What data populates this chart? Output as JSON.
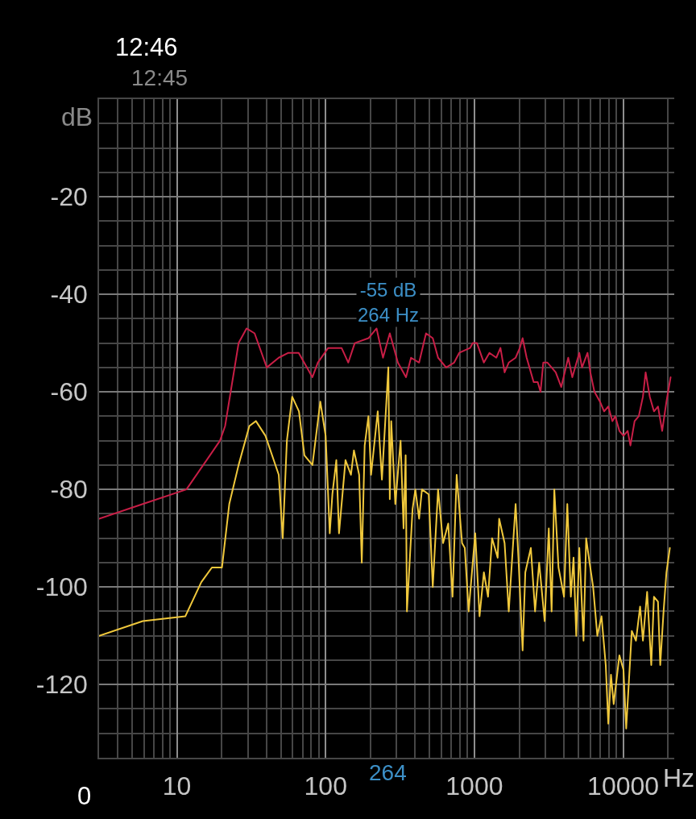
{
  "chart_data": {
    "type": "line",
    "xlabel": "Hz",
    "ylabel": "dB",
    "log": "x",
    "grid": true,
    "xlim": [
      3,
      22050
    ],
    "ylim": [
      -135,
      0
    ],
    "xticks": [
      {
        "value": 3,
        "label": null
      },
      {
        "value": 4,
        "label": null
      },
      {
        "value": 5,
        "label": null
      },
      {
        "value": 6,
        "label": null
      },
      {
        "value": 7,
        "label": null
      },
      {
        "value": 8,
        "label": null
      },
      {
        "value": 9,
        "label": null
      },
      10,
      {
        "value": 20,
        "label": null
      },
      {
        "value": 30,
        "label": null
      },
      {
        "value": 40,
        "label": null
      },
      {
        "value": 50,
        "label": null
      },
      {
        "value": 60,
        "label": null
      },
      {
        "value": 70,
        "label": null
      },
      {
        "value": 80,
        "label": null
      },
      {
        "value": 90,
        "label": null
      },
      100,
      {
        "value": 200,
        "label": null
      },
      {
        "value": 300,
        "label": null
      },
      {
        "value": 400,
        "label": null
      },
      {
        "value": 500,
        "label": null
      },
      {
        "value": 600,
        "label": null
      },
      {
        "value": 700,
        "label": null
      },
      {
        "value": 800,
        "label": null
      },
      {
        "value": 900,
        "label": null
      },
      1000,
      {
        "value": 2000,
        "label": null
      },
      {
        "value": 3000,
        "label": null
      },
      {
        "value": 4000,
        "label": null
      },
      {
        "value": 5000,
        "label": null
      },
      {
        "value": 6000,
        "label": null
      },
      {
        "value": 7000,
        "label": null
      },
      {
        "value": 8000,
        "label": null
      },
      {
        "value": 9000,
        "label": null
      },
      10000,
      {
        "value": 20000,
        "label": null
      }
    ],
    "yticks": [
      {
        "value": -5,
        "label": null
      },
      {
        "value": -10,
        "label": null
      },
      {
        "value": -15,
        "label": null
      },
      -20,
      {
        "value": -25,
        "label": null
      },
      {
        "value": -30,
        "label": null
      },
      {
        "value": -35,
        "label": null
      },
      -40,
      {
        "value": -45,
        "label": null
      },
      {
        "value": -50,
        "label": null
      },
      {
        "value": -55,
        "label": null
      },
      -60,
      {
        "value": -65,
        "label": null
      },
      {
        "value": -70,
        "label": null
      },
      {
        "value": -75,
        "label": null
      },
      -80,
      {
        "value": -85,
        "label": null
      },
      {
        "value": -90,
        "label": null
      },
      {
        "value": -95,
        "label": null
      },
      -100,
      {
        "value": -105,
        "label": null
      },
      {
        "value": -110,
        "label": null
      },
      {
        "value": -115,
        "label": null
      },
      -120,
      {
        "value": -125,
        "label": null
      },
      {
        "value": -130,
        "label": null
      }
    ],
    "annotations": [
      "12:46",
      "12:45",
      "0",
      "264",
      {
        "text": "-55 dB\n264 Hz",
        "x": 264,
        "y": -55
      }
    ],
    "series": [
      {
        "color": "#c81e46",
        "x": [
          3,
          5.9,
          11.6,
          19.5,
          21.1,
          26,
          29.4,
          33.3,
          40.2,
          48.4,
          56.2,
          65.9,
          81.5,
          88.6,
          104,
          128,
          142,
          157,
          194,
          220,
          243,
          270,
          306,
          347,
          375,
          425,
          473,
          525,
          570,
          646,
          731,
          791,
          935,
          975,
          1040,
          1158,
          1262,
          1404,
          1497,
          1596,
          1702,
          1893,
          2019,
          2109,
          2245,
          2396,
          2502,
          2665,
          2784,
          2904,
          3097,
          3304,
          3521,
          3837,
          4273,
          4552,
          5072,
          5288,
          5763,
          6016,
          6412,
          6982,
          7447,
          7943,
          8465,
          8845,
          9435,
          10050,
          10720,
          11190,
          11940,
          12730,
          13580,
          14160,
          15100,
          16110,
          17140,
          18290,
          19540,
          20840
        ],
        "values": [
          -86,
          -83,
          -80,
          -70,
          -67,
          -50,
          -47,
          -48,
          -55,
          -53,
          -52,
          -52,
          -57,
          -54,
          -51,
          -51,
          -54,
          -50,
          -49,
          -47,
          -53,
          -48,
          -54,
          -57,
          -53,
          -54,
          -48,
          -49,
          -53,
          -55,
          -54,
          -52,
          -51,
          -50,
          -50,
          -54,
          -52,
          -53,
          -51,
          -56,
          -54,
          -53,
          -51,
          -49,
          -53,
          -56,
          -58,
          -58,
          -60,
          -54,
          -54,
          -55,
          -56,
          -59,
          -53,
          -57,
          -52,
          -55,
          -52,
          -56,
          -60,
          -62,
          -64,
          -63,
          -66,
          -65,
          -68,
          -69,
          -68,
          -71,
          -66,
          -65,
          -61,
          -56,
          -61,
          -64,
          -63,
          -68,
          -62,
          -57
        ]
      },
      {
        "color": "#f0c83c",
        "x": [
          3,
          5.9,
          11.4,
          14.6,
          17.2,
          20.1,
          22.5,
          26,
          30.7,
          34,
          39.4,
          48.4,
          51.5,
          54.9,
          59.6,
          66.2,
          72,
          81.5,
          92.1,
          100,
          106.6,
          111,
          118,
          123,
          136,
          148,
          155,
          168,
          175,
          183,
          194,
          202,
          224,
          239,
          264,
          270,
          276,
          294,
          319,
          334,
          345,
          352,
          384,
          401,
          425,
          444,
          493,
          525,
          570,
          616,
          667,
          713,
          760,
          826,
          862,
          915,
          1013,
          1083,
          1158,
          1235,
          1315,
          1434,
          1467,
          1596,
          1702,
          1893,
          1977,
          2109,
          2199,
          2396,
          2557,
          2725,
          2967,
          3163,
          3304,
          3445,
          3675,
          4003,
          4213,
          4450,
          4640,
          4837,
          5072,
          5414,
          5641,
          5880,
          6282,
          6704,
          7155,
          7637,
          7943,
          8282,
          8635,
          9435,
          10050,
          10480,
          11430,
          12190,
          13000,
          13580,
          14490,
          15450,
          16110,
          17140,
          17750,
          18690,
          19540,
          20600
        ],
        "values": [
          -110,
          -107,
          -106,
          -99,
          -96,
          -96,
          -83,
          -75,
          -67,
          -66,
          -69,
          -77,
          -90,
          -70,
          -61,
          -64,
          -73,
          -75,
          -62,
          -69,
          -89,
          -81,
          -74,
          -89,
          -74,
          -77,
          -72,
          -77,
          -95,
          -71,
          -65,
          -77,
          -64,
          -78,
          -55,
          -82,
          -66,
          -83,
          -70,
          -88,
          -73,
          -105,
          -84,
          -80,
          -86,
          -80,
          -81,
          -100,
          -80,
          -91,
          -87,
          -102,
          -77,
          -91,
          -92,
          -105,
          -89,
          -106,
          -97,
          -102,
          -90,
          -94,
          -86,
          -91,
          -105,
          -83,
          -94,
          -113,
          -97,
          -92,
          -105,
          -95,
          -107,
          -88,
          -105,
          -80,
          -96,
          -102,
          -83,
          -102,
          -94,
          -110,
          -92,
          -111,
          -90,
          -94,
          -100,
          -110,
          -106,
          -116,
          -128,
          -118,
          -124,
          -114,
          -117,
          -129,
          -109,
          -111,
          -104,
          -111,
          -101,
          -116,
          -102,
          -103,
          -116,
          -105,
          -97,
          -92
        ]
      }
    ]
  }
}
